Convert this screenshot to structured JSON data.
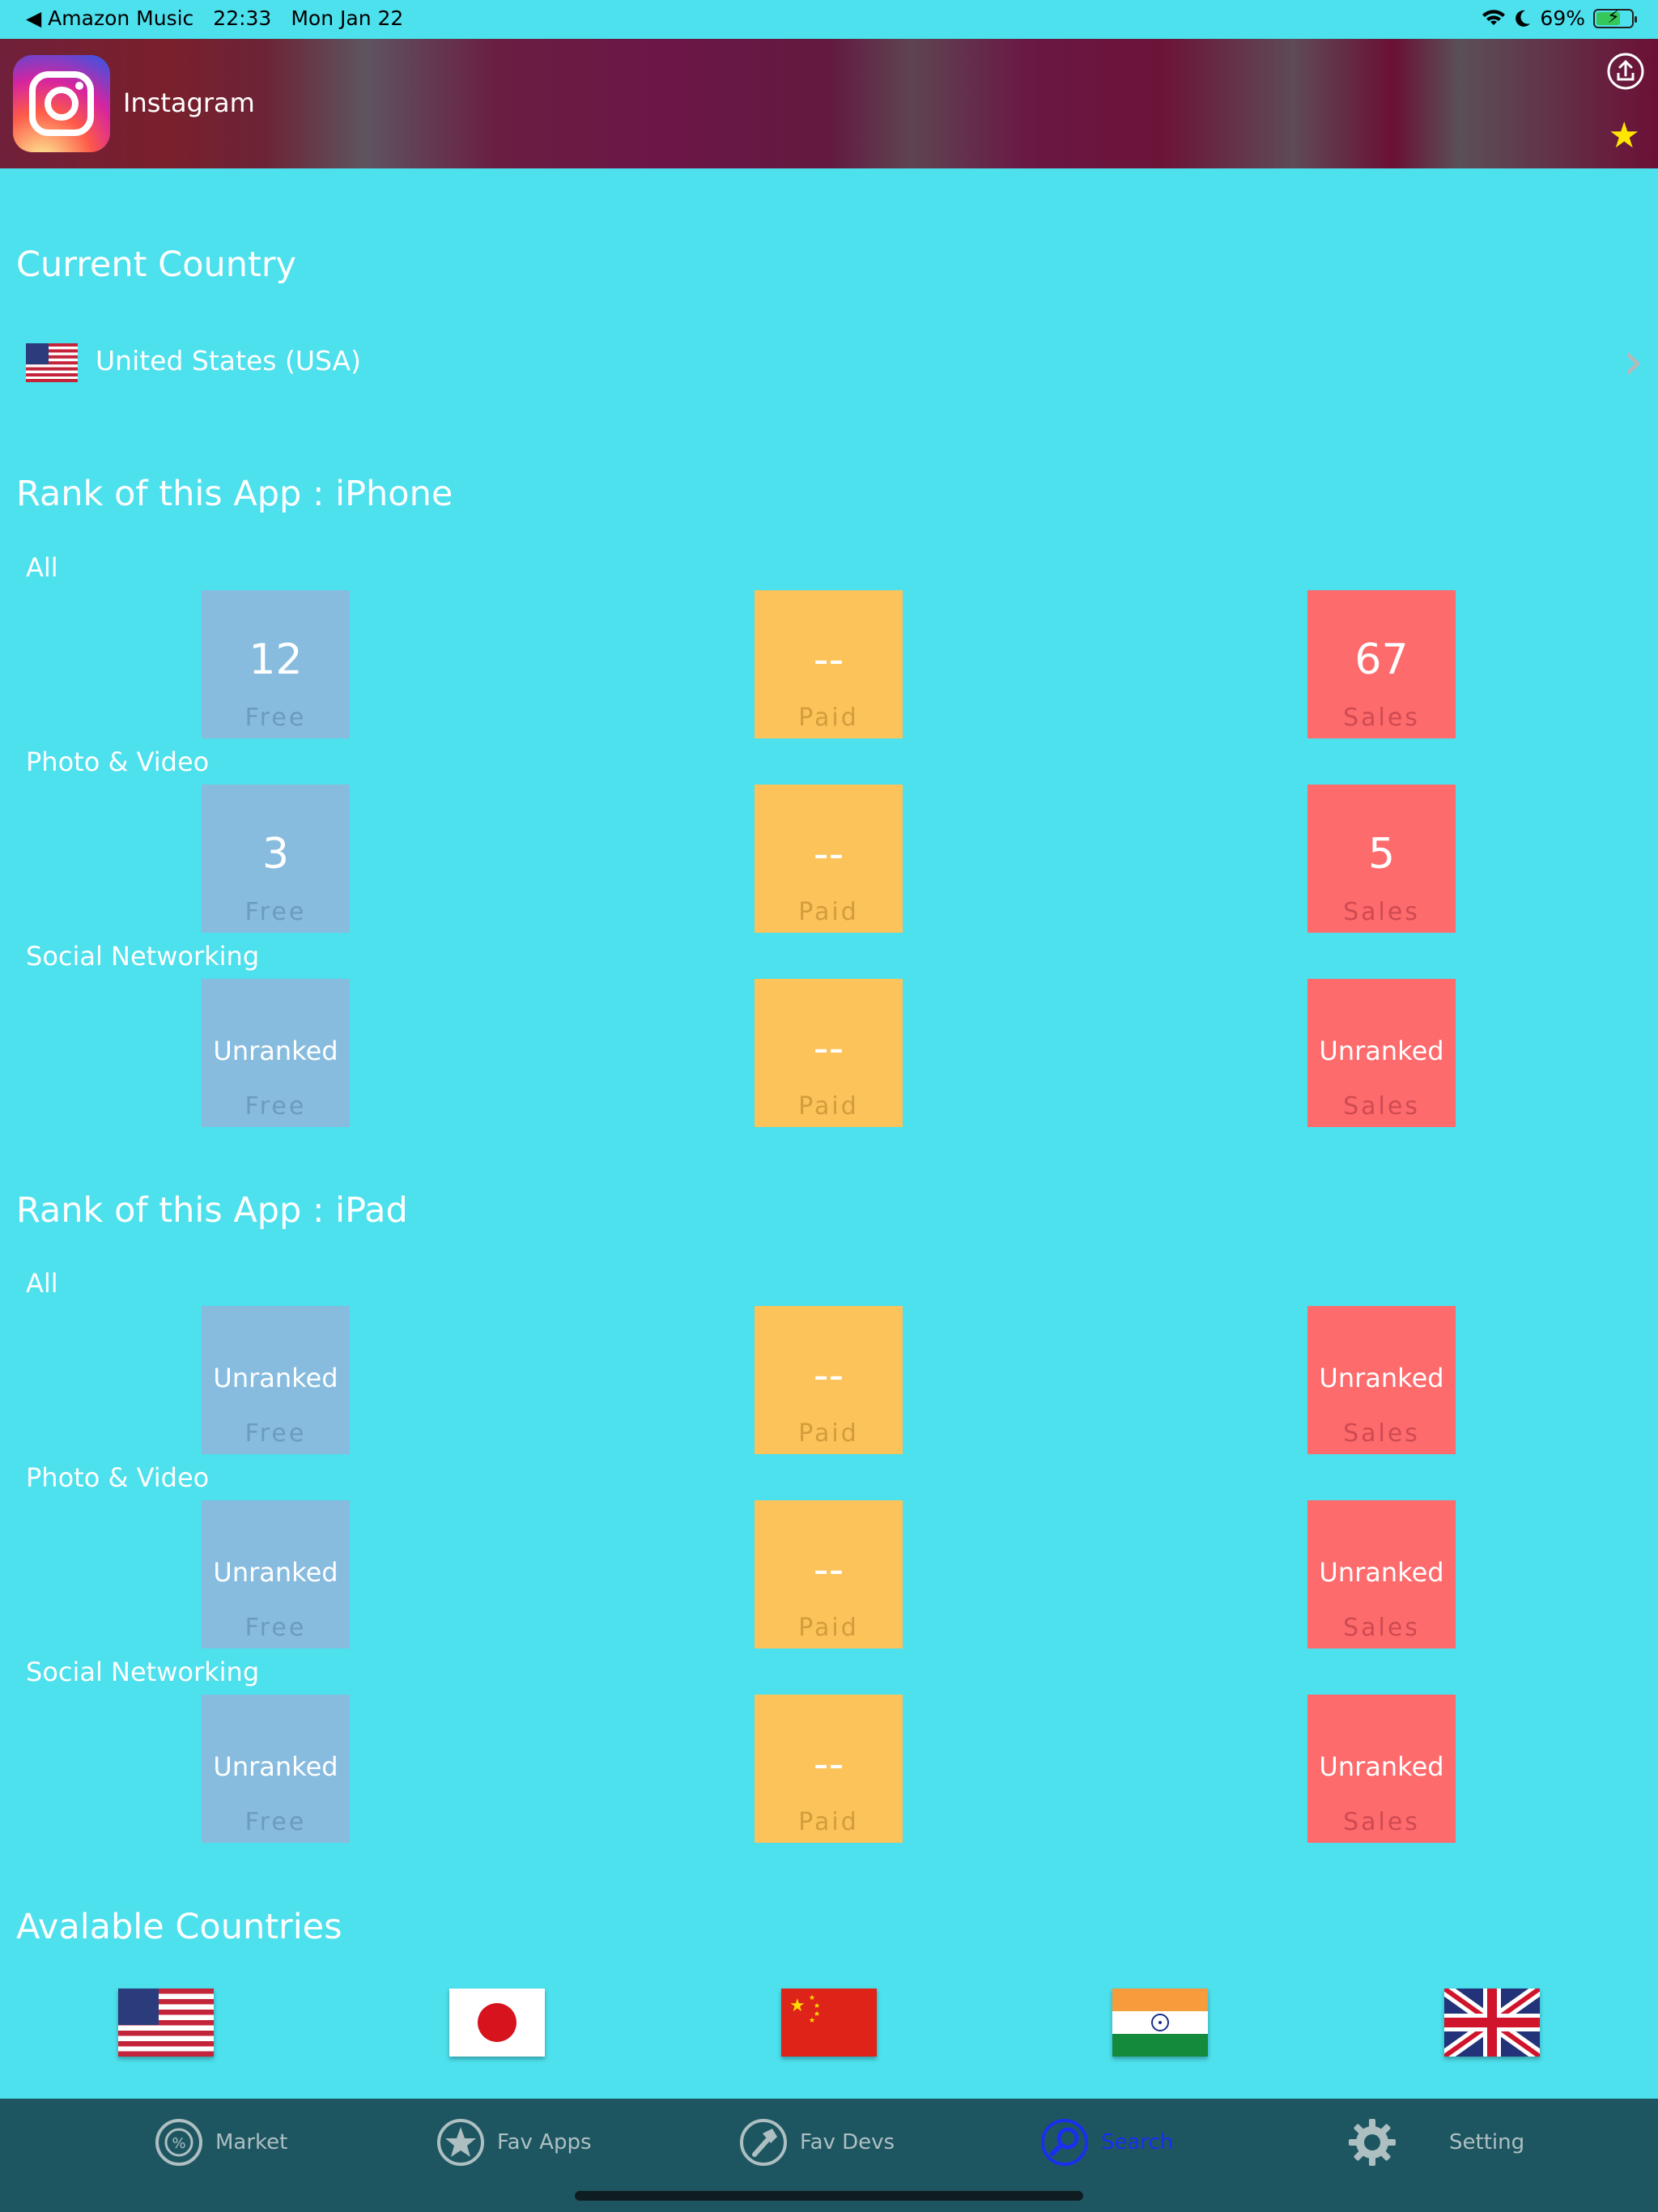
{
  "status_bar": {
    "back_app": "◀ Amazon Music",
    "time": "22:33",
    "date": "Mon Jan 22",
    "battery": "69%",
    "battery_level": 0.69
  },
  "header": {
    "app_name": "Instagram"
  },
  "current_country": {
    "title": "Current Country",
    "country": "United States (USA)"
  },
  "iphone": {
    "title": "Rank of this App : iPhone",
    "categories": [
      {
        "name": "All",
        "free": "12",
        "paid": "--",
        "sales": "67"
      },
      {
        "name": "Photo & Video",
        "free": "3",
        "paid": "--",
        "sales": "5"
      },
      {
        "name": "Social Networking",
        "free": "Unranked",
        "paid": "--",
        "sales": "Unranked"
      }
    ]
  },
  "ipad": {
    "title": "Rank of this App : iPad",
    "categories": [
      {
        "name": "All",
        "free": "Unranked",
        "paid": "--",
        "sales": "Unranked"
      },
      {
        "name": "Photo & Video",
        "free": "Unranked",
        "paid": "--",
        "sales": "Unranked"
      },
      {
        "name": "Social Networking",
        "free": "Unranked",
        "paid": "--",
        "sales": "Unranked"
      }
    ]
  },
  "tile_labels": {
    "free": "Free",
    "paid": "Paid",
    "sales": "Sales"
  },
  "available": {
    "title": "Avalable Countries"
  },
  "tabs": [
    {
      "label": "Market",
      "icon": "market-icon"
    },
    {
      "label": "Fav Apps",
      "icon": "star-icon"
    },
    {
      "label": "Fav Devs",
      "icon": "hammer-icon"
    },
    {
      "label": "Search",
      "icon": "search-icon"
    },
    {
      "label": "Setting",
      "icon": "gear-icon"
    }
  ],
  "colors": {
    "background": "#4de0ed",
    "free": "#87bcdf",
    "paid": "#fcc35a",
    "sales": "#fe6b6d",
    "tabbar": "#1d5661",
    "active_tab": "#1a2ef0"
  }
}
